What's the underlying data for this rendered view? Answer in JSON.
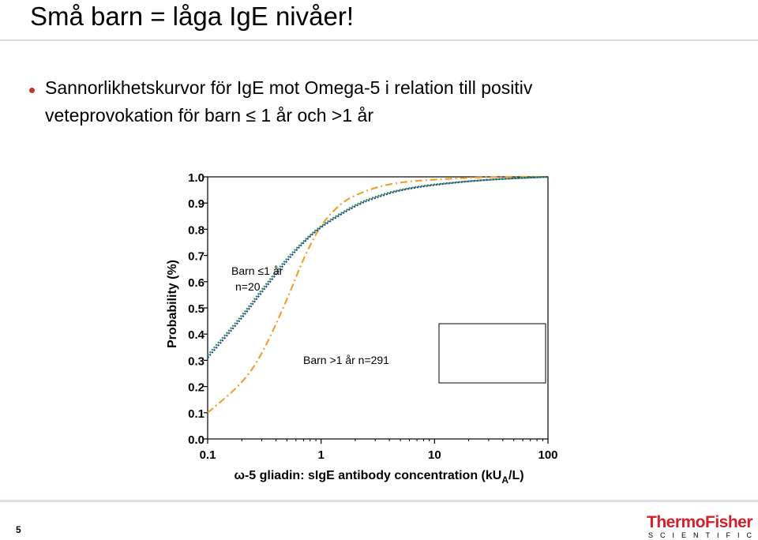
{
  "slide": {
    "title": "Små barn = låga IgE nivåer!",
    "bullet_line1": "Sannorlikhetskurvor för IgE mot Omega-5 i relation till positiv",
    "bullet_line2": "veteprovokation för  barn ≤ 1 år och >1 år",
    "slide_number": "5",
    "logo_top": "ThermoFisher",
    "logo_bottom": "SCIENTIFIC"
  },
  "chart_data": {
    "type": "line",
    "x_scale": "log",
    "xlim": [
      0.1,
      100
    ],
    "ylim": [
      0.0,
      1.0
    ],
    "x_ticks": [
      "0.1",
      "1",
      "10",
      "100"
    ],
    "y_ticks": [
      "0.0",
      "0.1",
      "0.2",
      "0.3",
      "0.4",
      "0.5",
      "0.6",
      "0.7",
      "0.8",
      "0.9",
      "1.0"
    ],
    "ylabel": "Probability (%)",
    "xlabel_prefix": "ω",
    "xlabel_main": "-5 gliadin: sIgE antibody concentration (kU",
    "xlabel_sub": "A",
    "xlabel_end": "/L)",
    "annotations": {
      "young_line1": "Barn ≤1 år",
      "young_line2": "n=20",
      "older": "Barn >1 år n=291"
    },
    "series": [
      {
        "color": "#f0a030",
        "style": "dash-dot",
        "points": [
          [
            0.1,
            0.1
          ],
          [
            0.2,
            0.21
          ],
          [
            0.3,
            0.32
          ],
          [
            0.5,
            0.53
          ],
          [
            0.7,
            0.69
          ],
          [
            1,
            0.82
          ],
          [
            1.5,
            0.9
          ],
          [
            2,
            0.93
          ],
          [
            3,
            0.96
          ],
          [
            5,
            0.98
          ],
          [
            10,
            0.99
          ],
          [
            30,
            1.0
          ],
          [
            100,
            1.0
          ]
        ]
      },
      {
        "color": "#1f3f99",
        "style": "dotted",
        "points": [
          [
            0.1,
            0.31
          ],
          [
            0.2,
            0.46
          ],
          [
            0.3,
            0.56
          ],
          [
            0.5,
            0.68
          ],
          [
            0.7,
            0.75
          ],
          [
            1,
            0.81
          ],
          [
            2,
            0.89
          ],
          [
            3,
            0.92
          ],
          [
            5,
            0.95
          ],
          [
            10,
            0.97
          ],
          [
            30,
            0.99
          ],
          [
            100,
            1.0
          ]
        ]
      },
      {
        "color": "#2e8a4a",
        "style": "dotted",
        "points": [
          [
            0.1,
            0.32
          ],
          [
            0.2,
            0.47
          ],
          [
            0.3,
            0.57
          ],
          [
            0.5,
            0.69
          ],
          [
            0.7,
            0.755
          ],
          [
            1,
            0.815
          ],
          [
            2,
            0.895
          ],
          [
            3,
            0.925
          ],
          [
            5,
            0.952
          ],
          [
            10,
            0.972
          ],
          [
            30,
            0.99
          ],
          [
            100,
            1.0
          ]
        ]
      }
    ]
  }
}
